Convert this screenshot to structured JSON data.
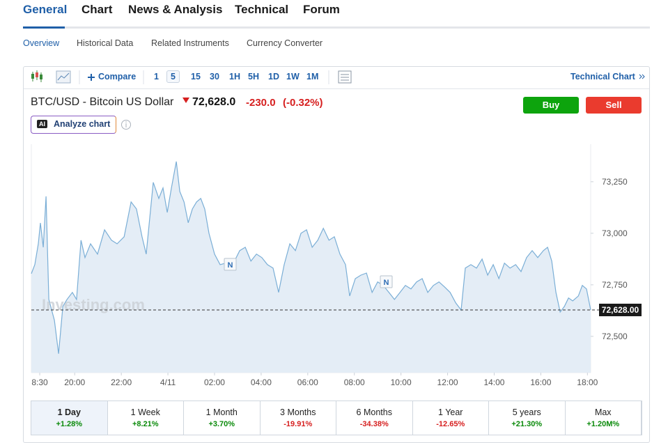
{
  "tabs": [
    "General",
    "Chart",
    "News & Analysis",
    "Technical",
    "Forum"
  ],
  "subnav": [
    "Overview",
    "Historical Data",
    "Related Instruments",
    "Currency Converter"
  ],
  "toolbar": {
    "compare": "Compare",
    "intervals": [
      "1",
      "5",
      "15",
      "30",
      "1H",
      "5H",
      "1D",
      "1W",
      "1M"
    ],
    "technical_chart": "Technical Chart"
  },
  "instrument": {
    "name": "BTC/USD - Bitcoin US Dollar",
    "price": "72,628.0",
    "change": "-230.0",
    "change_pct": "(-0.32%)"
  },
  "buttons": {
    "buy": "Buy",
    "sell": "Sell"
  },
  "analyze": {
    "badge": "AI",
    "label": "Analyze chart"
  },
  "chart": {
    "type": "area",
    "color": "#7aaed6",
    "fill": "#e4edf6",
    "x": [
      0.14,
      0.29,
      0.44,
      0.53,
      0.65,
      0.77,
      0.89,
      1.13,
      1.31,
      1.49,
      1.67,
      1.9,
      2.08,
      2.27,
      2.44,
      2.68,
      2.98,
      3.28,
      3.58,
      3.82,
      4.12,
      4.42,
      4.65,
      4.89,
      5.07,
      5.37,
      5.61,
      5.79,
      5.97,
      6.15,
      6.36,
      6.51,
      6.69,
      6.87,
      7.05,
      7.23,
      7.41,
      7.58,
      7.76,
      8.0,
      8.24,
      8.48,
      8.78,
      9.08,
      9.32,
      9.56,
      9.8,
      10.03,
      10.27,
      10.51,
      10.75,
      10.99,
      11.23,
      11.47,
      11.71,
      11.95,
      12.19,
      12.43,
      12.67,
      12.91,
      13.14,
      13.38,
      13.62,
      13.8,
      14.04,
      14.28,
      14.52,
      14.76,
      15.0,
      15.24,
      15.48,
      15.72,
      15.96,
      16.19,
      16.43,
      16.67,
      16.91,
      17.15,
      17.39,
      17.63,
      17.87,
      18.11,
      18.35,
      18.58,
      18.76,
      19.0,
      19.24,
      19.48,
      19.72,
      19.96,
      20.2,
      20.44,
      20.68,
      20.92,
      21.15,
      21.39,
      21.63,
      21.87,
      22.11,
      22.29,
      22.47,
      22.65,
      22.83,
      23.01,
      23.19,
      23.37,
      23.61,
      23.78,
      23.96,
      24.14
    ],
    "values": [
      72804,
      72848,
      72949,
      73050,
      72932,
      73179,
      72679,
      72578,
      72416,
      72645,
      72679,
      72713,
      72679,
      72966,
      72882,
      72949,
      72899,
      73017,
      72966,
      72949,
      72983,
      73152,
      73118,
      72983,
      72899,
      73247,
      73169,
      73220,
      73101,
      73220,
      73348,
      73203,
      73152,
      73051,
      73118,
      73152,
      73169,
      73118,
      73000,
      72899,
      72848,
      72855,
      72848,
      72916,
      72932,
      72865,
      72899,
      72882,
      72848,
      72831,
      72713,
      72848,
      72949,
      72916,
      73000,
      73017,
      72932,
      72966,
      73024,
      72966,
      72983,
      72899,
      72848,
      72696,
      72780,
      72797,
      72807,
      72713,
      72764,
      72747,
      72713,
      72679,
      72713,
      72747,
      72730,
      72764,
      72780,
      72713,
      72747,
      72764,
      72740,
      72713,
      72662,
      72628,
      72831,
      72848,
      72831,
      72875,
      72797,
      72848,
      72780,
      72855,
      72831,
      72848,
      72814,
      72882,
      72916,
      72882,
      72916,
      72932,
      72865,
      72713,
      72618,
      72645,
      72686,
      72672,
      72696,
      72747,
      72730,
      72628
    ],
    "xlim": [
      0.14,
      24.14
    ],
    "ylim": [
      72324,
      73432
    ],
    "xticks": [
      {
        "value": 0.5,
        "label": "8:30"
      },
      {
        "value": 2,
        "label": "20:00"
      },
      {
        "value": 4,
        "label": "22:00"
      },
      {
        "value": 6,
        "label": "4/11"
      },
      {
        "value": 8,
        "label": "02:00"
      },
      {
        "value": 10,
        "label": "04:00"
      },
      {
        "value": 12,
        "label": "06:00"
      },
      {
        "value": 14,
        "label": "08:00"
      },
      {
        "value": 16,
        "label": "10:00"
      },
      {
        "value": 18,
        "label": "12:00"
      },
      {
        "value": 20,
        "label": "14:00"
      },
      {
        "value": 22,
        "label": "16:00"
      },
      {
        "value": 24,
        "label": "18:00"
      }
    ],
    "yticks": [
      {
        "value": 72500,
        "label": "72,500"
      },
      {
        "value": 72750,
        "label": "72,750"
      },
      {
        "value": 73000,
        "label": "73,000"
      },
      {
        "value": 73250,
        "label": "73,250"
      }
    ],
    "last_price": {
      "value": 72628,
      "label": "72,628.00"
    },
    "watermark": "Investing.com",
    "news_markers": [
      "N",
      "N"
    ]
  },
  "periods": [
    {
      "label": "1 Day",
      "change": "+1.28%"
    },
    {
      "label": "1 Week",
      "change": "+8.21%"
    },
    {
      "label": "1 Month",
      "change": "+3.70%"
    },
    {
      "label": "3 Months",
      "change": "-19.91%"
    },
    {
      "label": "6 Months",
      "change": "-34.38%"
    },
    {
      "label": "1 Year",
      "change": "-12.65%"
    },
    {
      "label": "5 years",
      "change": "+21.30%"
    },
    {
      "label": "Max",
      "change": "+1.20M%"
    }
  ]
}
